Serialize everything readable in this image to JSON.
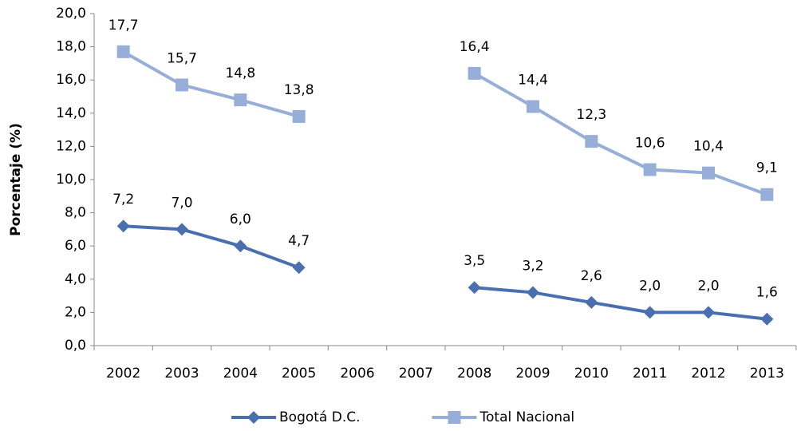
{
  "chart_data": {
    "type": "line",
    "y_label": "Porcentaje (%)",
    "categories": [
      "2002",
      "2003",
      "2004",
      "2005",
      "2006",
      "2007",
      "2008",
      "2009",
      "2010",
      "2011",
      "2012",
      "2013"
    ],
    "series": [
      {
        "name": "Bogotá D.C.",
        "color": "#4a6fae",
        "marker": "diamond",
        "values": [
          7.2,
          7.0,
          6.0,
          4.7,
          null,
          null,
          3.5,
          3.2,
          2.6,
          2.0,
          2.0,
          1.6
        ],
        "value_labels": [
          "7,2",
          "7,0",
          "6,0",
          "4,7",
          null,
          null,
          "3,5",
          "3,2",
          "2,6",
          "2,0",
          "2,0",
          "1,6"
        ]
      },
      {
        "name": "Total Nacional",
        "color": "#97aed8",
        "marker": "square",
        "values": [
          17.7,
          15.7,
          14.8,
          13.8,
          null,
          null,
          16.4,
          14.4,
          12.3,
          10.6,
          10.4,
          9.1
        ],
        "value_labels": [
          "17,7",
          "15,7",
          "14,8",
          "13,8",
          null,
          null,
          "16,4",
          "14,4",
          "12,3",
          "10,6",
          "10,4",
          "9,1"
        ]
      }
    ],
    "ylim": [
      0,
      20
    ],
    "yticks": [
      {
        "value": 0,
        "label": "0,0"
      },
      {
        "value": 2,
        "label": "2,0"
      },
      {
        "value": 4,
        "label": "4,0"
      },
      {
        "value": 6,
        "label": "6,0"
      },
      {
        "value": 8,
        "label": "8,0"
      },
      {
        "value": 10,
        "label": "10,0"
      },
      {
        "value": 12,
        "label": "12,0"
      },
      {
        "value": 14,
        "label": "14,0"
      },
      {
        "value": 16,
        "label": "16,0"
      },
      {
        "value": 18,
        "label": "18,0"
      },
      {
        "value": 20,
        "label": "20,0"
      }
    ],
    "grid": false,
    "legend": "bottom"
  }
}
